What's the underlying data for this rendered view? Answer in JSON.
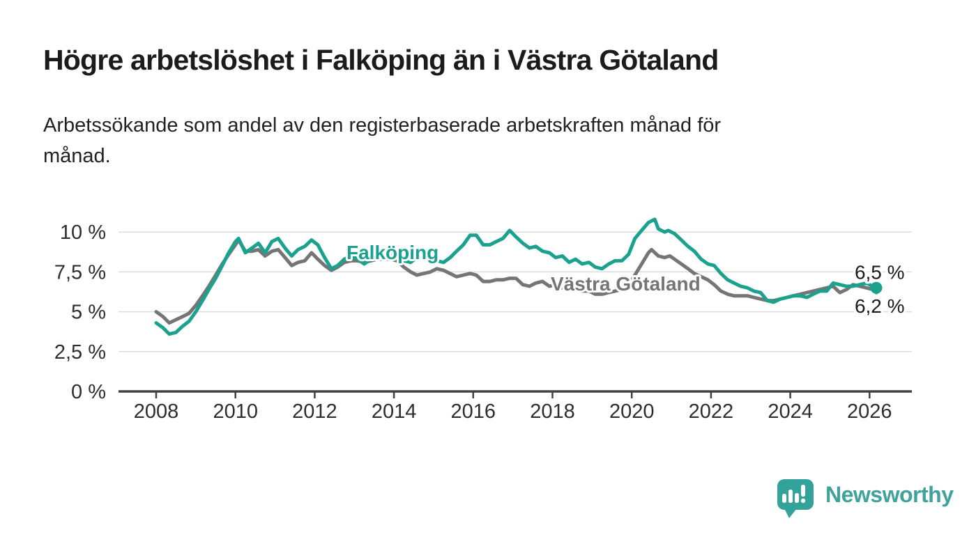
{
  "header": {
    "title": "Högre arbetslöshet i Falköping än i Västra Götaland",
    "subtitle_lines": [
      "Arbetssökande som andel av den registerbaserade arbetskraften månad för",
      "månad."
    ]
  },
  "chart_data": {
    "type": "line",
    "title": "Högre arbetslöshet i Falköping än i Västra Götaland",
    "xlabel": "",
    "ylabel": "Arbetssökande som andel av den registerbaserade arbetskraften",
    "unit": "%",
    "grid": "horizontal",
    "legend_position": "inline-labels-on-lines",
    "x_axis": {
      "range": [
        2007.05,
        2027.05
      ],
      "ticks": [
        {
          "v": 2008,
          "label": "2008"
        },
        {
          "v": 2010,
          "label": "2010"
        },
        {
          "v": 2012,
          "label": "2012"
        },
        {
          "v": 2014,
          "label": "2014"
        },
        {
          "v": 2016,
          "label": "2016"
        },
        {
          "v": 2018,
          "label": "2018"
        },
        {
          "v": 2020,
          "label": "2020"
        },
        {
          "v": 2022,
          "label": "2022"
        },
        {
          "v": 2024,
          "label": "2024"
        },
        {
          "v": 2026,
          "label": "2026"
        }
      ]
    },
    "y_axis": {
      "range": [
        0,
        11
      ],
      "ticks": [
        {
          "v": 10,
          "label": "10 %"
        },
        {
          "v": 7.5,
          "label": "7,5 %"
        },
        {
          "v": 5,
          "label": "5 %"
        },
        {
          "v": 2.5,
          "label": "2,5 %"
        },
        {
          "v": 0,
          "label": "0 %"
        }
      ]
    },
    "colors": {
      "falkoping": "#1AA28F",
      "vastra_gotaland": "#757575",
      "grid": "#dcdcdc",
      "axis": "#414141",
      "axis_text": "#2d2d2d",
      "end_label_text": "#1b1b1b"
    },
    "series": [
      {
        "name": "Västra Götaland",
        "key": "vastra_gotaland",
        "end_label": "6,2 %",
        "end_dot": false,
        "points": [
          [
            2008.0,
            5.0
          ],
          [
            2008.17,
            4.7
          ],
          [
            2008.33,
            4.3
          ],
          [
            2008.5,
            4.5
          ],
          [
            2008.67,
            4.7
          ],
          [
            2008.83,
            4.9
          ],
          [
            2009.0,
            5.4
          ],
          [
            2009.17,
            6.0
          ],
          [
            2009.33,
            6.6
          ],
          [
            2009.5,
            7.3
          ],
          [
            2009.67,
            8.0
          ],
          [
            2009.83,
            8.6
          ],
          [
            2010.0,
            9.2
          ],
          [
            2010.08,
            9.5
          ],
          [
            2010.25,
            8.8
          ],
          [
            2010.42,
            8.8
          ],
          [
            2010.58,
            8.9
          ],
          [
            2010.75,
            8.5
          ],
          [
            2010.92,
            8.8
          ],
          [
            2011.08,
            8.9
          ],
          [
            2011.25,
            8.4
          ],
          [
            2011.42,
            7.9
          ],
          [
            2011.58,
            8.1
          ],
          [
            2011.75,
            8.2
          ],
          [
            2011.92,
            8.7
          ],
          [
            2012.08,
            8.3
          ],
          [
            2012.25,
            7.9
          ],
          [
            2012.42,
            7.6
          ],
          [
            2012.58,
            7.8
          ],
          [
            2012.75,
            8.1
          ],
          [
            2012.92,
            8.2
          ],
          [
            2013.08,
            8.2
          ],
          [
            2013.25,
            8.1
          ],
          [
            2013.42,
            8.2
          ],
          [
            2013.58,
            8.3
          ],
          [
            2013.75,
            8.3
          ],
          [
            2013.92,
            8.3
          ],
          [
            2014.08,
            8.2
          ],
          [
            2014.25,
            7.8
          ],
          [
            2014.42,
            7.5
          ],
          [
            2014.58,
            7.3
          ],
          [
            2014.75,
            7.4
          ],
          [
            2014.92,
            7.5
          ],
          [
            2015.08,
            7.7
          ],
          [
            2015.25,
            7.6
          ],
          [
            2015.42,
            7.4
          ],
          [
            2015.58,
            7.2
          ],
          [
            2015.75,
            7.3
          ],
          [
            2015.92,
            7.4
          ],
          [
            2016.08,
            7.3
          ],
          [
            2016.25,
            6.9
          ],
          [
            2016.42,
            6.9
          ],
          [
            2016.58,
            7.0
          ],
          [
            2016.75,
            7.0
          ],
          [
            2016.92,
            7.1
          ],
          [
            2017.08,
            7.1
          ],
          [
            2017.25,
            6.7
          ],
          [
            2017.42,
            6.6
          ],
          [
            2017.58,
            6.8
          ],
          [
            2017.75,
            6.9
          ],
          [
            2017.92,
            6.6
          ],
          [
            2018.08,
            6.7
          ],
          [
            2018.25,
            6.5
          ],
          [
            2018.42,
            6.4
          ],
          [
            2018.58,
            6.4
          ],
          [
            2018.75,
            6.3
          ],
          [
            2018.92,
            6.3
          ],
          [
            2019.08,
            6.1
          ],
          [
            2019.25,
            6.1
          ],
          [
            2019.42,
            6.2
          ],
          [
            2019.58,
            6.3
          ],
          [
            2019.75,
            6.4
          ],
          [
            2019.92,
            6.7
          ],
          [
            2020.08,
            7.3
          ],
          [
            2020.25,
            8.0
          ],
          [
            2020.42,
            8.7
          ],
          [
            2020.5,
            8.9
          ],
          [
            2020.67,
            8.5
          ],
          [
            2020.83,
            8.4
          ],
          [
            2020.96,
            8.5
          ],
          [
            2021.08,
            8.3
          ],
          [
            2021.25,
            8.0
          ],
          [
            2021.42,
            7.7
          ],
          [
            2021.58,
            7.4
          ],
          [
            2021.75,
            7.2
          ],
          [
            2021.92,
            7.0
          ],
          [
            2022.08,
            6.7
          ],
          [
            2022.25,
            6.3
          ],
          [
            2022.42,
            6.1
          ],
          [
            2022.58,
            6.0
          ],
          [
            2022.75,
            6.0
          ],
          [
            2022.92,
            6.0
          ],
          [
            2023.08,
            5.9
          ],
          [
            2023.25,
            5.8
          ],
          [
            2023.42,
            5.7
          ],
          [
            2023.58,
            5.7
          ],
          [
            2023.75,
            5.8
          ],
          [
            2023.92,
            5.9
          ],
          [
            2024.08,
            6.0
          ],
          [
            2024.25,
            6.1
          ],
          [
            2024.42,
            6.2
          ],
          [
            2024.58,
            6.3
          ],
          [
            2024.75,
            6.4
          ],
          [
            2024.92,
            6.5
          ],
          [
            2025.08,
            6.6
          ],
          [
            2025.25,
            6.2
          ],
          [
            2025.42,
            6.4
          ],
          [
            2025.58,
            6.7
          ],
          [
            2025.75,
            6.6
          ],
          [
            2025.92,
            6.5
          ],
          [
            2026.08,
            6.4
          ],
          [
            2026.17,
            6.2
          ]
        ]
      },
      {
        "name": "Falköping",
        "key": "falkoping",
        "end_label": "6,5 %",
        "end_dot": true,
        "points": [
          [
            2008.0,
            4.3
          ],
          [
            2008.17,
            4.0
          ],
          [
            2008.33,
            3.6
          ],
          [
            2008.5,
            3.7
          ],
          [
            2008.67,
            4.1
          ],
          [
            2008.83,
            4.4
          ],
          [
            2009.0,
            5.0
          ],
          [
            2009.17,
            5.7
          ],
          [
            2009.33,
            6.4
          ],
          [
            2009.5,
            7.1
          ],
          [
            2009.67,
            7.9
          ],
          [
            2009.83,
            8.7
          ],
          [
            2010.0,
            9.4
          ],
          [
            2010.08,
            9.6
          ],
          [
            2010.25,
            8.7
          ],
          [
            2010.42,
            9.0
          ],
          [
            2010.58,
            9.3
          ],
          [
            2010.75,
            8.7
          ],
          [
            2010.92,
            9.4
          ],
          [
            2011.08,
            9.6
          ],
          [
            2011.25,
            9.0
          ],
          [
            2011.42,
            8.5
          ],
          [
            2011.58,
            8.9
          ],
          [
            2011.75,
            9.1
          ],
          [
            2011.92,
            9.5
          ],
          [
            2012.08,
            9.2
          ],
          [
            2012.25,
            8.4
          ],
          [
            2012.42,
            7.7
          ],
          [
            2012.58,
            7.9
          ],
          [
            2012.75,
            8.3
          ],
          [
            2012.92,
            8.5
          ],
          [
            2013.08,
            8.3
          ],
          [
            2013.25,
            8.0
          ],
          [
            2013.42,
            8.3
          ],
          [
            2013.58,
            8.5
          ],
          [
            2013.75,
            8.6
          ],
          [
            2013.92,
            8.5
          ],
          [
            2014.08,
            8.4
          ],
          [
            2014.25,
            8.2
          ],
          [
            2014.42,
            8.1
          ],
          [
            2014.58,
            8.4
          ],
          [
            2014.75,
            8.6
          ],
          [
            2014.92,
            8.5
          ],
          [
            2015.08,
            8.2
          ],
          [
            2015.25,
            8.1
          ],
          [
            2015.42,
            8.4
          ],
          [
            2015.58,
            8.8
          ],
          [
            2015.75,
            9.2
          ],
          [
            2015.92,
            9.8
          ],
          [
            2016.08,
            9.8
          ],
          [
            2016.25,
            9.2
          ],
          [
            2016.42,
            9.2
          ],
          [
            2016.58,
            9.4
          ],
          [
            2016.75,
            9.6
          ],
          [
            2016.92,
            10.1
          ],
          [
            2017.08,
            9.7
          ],
          [
            2017.25,
            9.3
          ],
          [
            2017.42,
            9.0
          ],
          [
            2017.58,
            9.1
          ],
          [
            2017.75,
            8.8
          ],
          [
            2017.92,
            8.7
          ],
          [
            2018.08,
            8.4
          ],
          [
            2018.25,
            8.5
          ],
          [
            2018.42,
            8.1
          ],
          [
            2018.58,
            8.3
          ],
          [
            2018.75,
            8.0
          ],
          [
            2018.92,
            8.1
          ],
          [
            2019.08,
            7.8
          ],
          [
            2019.25,
            7.7
          ],
          [
            2019.42,
            8.0
          ],
          [
            2019.58,
            8.2
          ],
          [
            2019.75,
            8.2
          ],
          [
            2019.92,
            8.6
          ],
          [
            2020.08,
            9.6
          ],
          [
            2020.25,
            10.1
          ],
          [
            2020.42,
            10.6
          ],
          [
            2020.58,
            10.8
          ],
          [
            2020.67,
            10.2
          ],
          [
            2020.83,
            10.0
          ],
          [
            2020.92,
            10.1
          ],
          [
            2021.08,
            9.9
          ],
          [
            2021.25,
            9.5
          ],
          [
            2021.42,
            9.1
          ],
          [
            2021.58,
            8.8
          ],
          [
            2021.75,
            8.3
          ],
          [
            2021.92,
            8.0
          ],
          [
            2022.08,
            7.9
          ],
          [
            2022.25,
            7.4
          ],
          [
            2022.42,
            7.0
          ],
          [
            2022.58,
            6.8
          ],
          [
            2022.75,
            6.6
          ],
          [
            2022.92,
            6.5
          ],
          [
            2023.08,
            6.3
          ],
          [
            2023.25,
            6.2
          ],
          [
            2023.42,
            5.7
          ],
          [
            2023.58,
            5.6
          ],
          [
            2023.75,
            5.8
          ],
          [
            2023.92,
            5.9
          ],
          [
            2024.08,
            6.0
          ],
          [
            2024.25,
            6.0
          ],
          [
            2024.42,
            5.9
          ],
          [
            2024.58,
            6.1
          ],
          [
            2024.75,
            6.3
          ],
          [
            2024.92,
            6.3
          ],
          [
            2025.08,
            6.8
          ],
          [
            2025.25,
            6.7
          ],
          [
            2025.42,
            6.6
          ],
          [
            2025.58,
            6.6
          ],
          [
            2025.75,
            6.7
          ],
          [
            2025.92,
            6.8
          ],
          [
            2026.08,
            6.6
          ],
          [
            2026.17,
            6.5
          ]
        ]
      }
    ],
    "inline_labels": [
      {
        "series": "Falköping",
        "key": "falkoping"
      },
      {
        "series": "Västra Götaland",
        "key": "vastra_gotaland"
      }
    ]
  },
  "footer": {
    "brand": "Newsworthy",
    "brand_color": "#3FA29B",
    "logo_icon": "speech-bubble-bar-chart-icon"
  }
}
